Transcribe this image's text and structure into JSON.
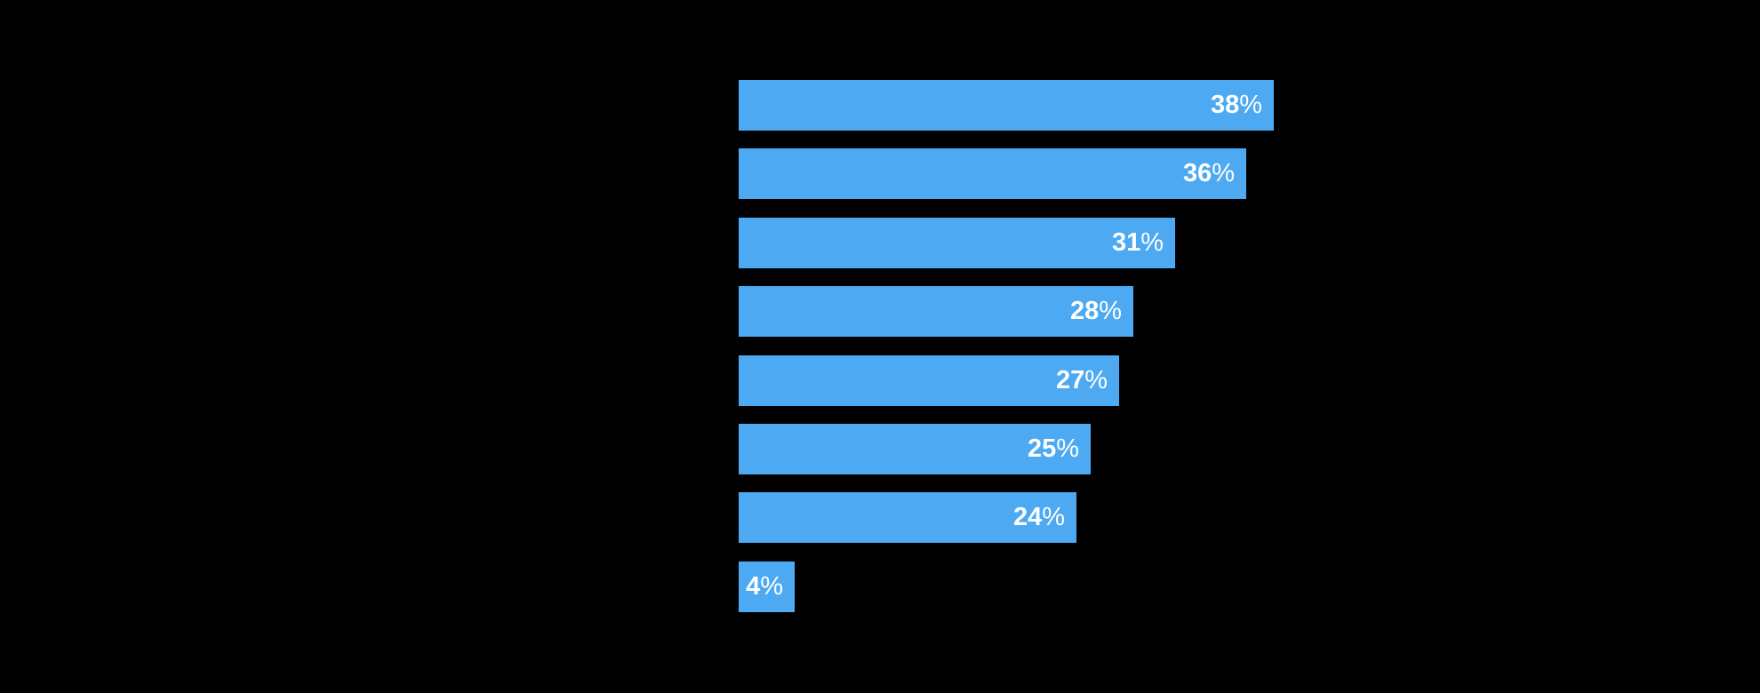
{
  "page": {
    "background_color": "#000000"
  },
  "chart_data": {
    "type": "bar",
    "orientation": "horizontal",
    "values": [
      38,
      36,
      31,
      28,
      27,
      25,
      24,
      4
    ],
    "data_labels": [
      "38%",
      "36%",
      "31%",
      "28%",
      "27%",
      "25%",
      "24%",
      "4%"
    ],
    "label_suffix": "%",
    "title": "",
    "xlabel": "",
    "ylabel": "",
    "xlim": [
      0,
      38
    ],
    "grid": "off",
    "legend": "none",
    "bar_color": "#4DA9F1",
    "label_color": "#FFFFFF",
    "background_color": "#000000"
  }
}
